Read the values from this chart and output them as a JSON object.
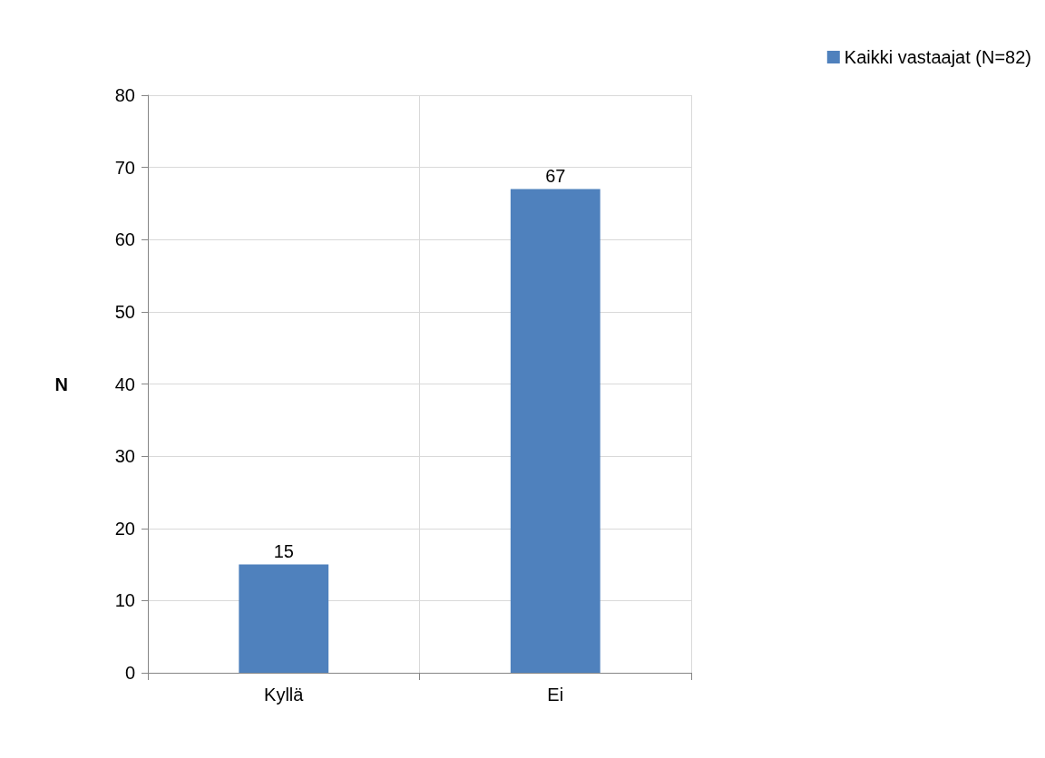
{
  "chart_data": {
    "type": "bar",
    "ylabel": "N",
    "categories": [
      "Kyllä",
      "Ei"
    ],
    "series": [
      {
        "name": "Kaikki vastaajat (N=82)",
        "color": "#4f81bd",
        "values": [
          15,
          67
        ]
      }
    ],
    "ylim": [
      0,
      80
    ],
    "yticks": [
      0,
      10,
      20,
      30,
      40,
      50,
      60,
      70,
      80
    ],
    "grid": true,
    "legend": "top right",
    "data_labels": true
  }
}
